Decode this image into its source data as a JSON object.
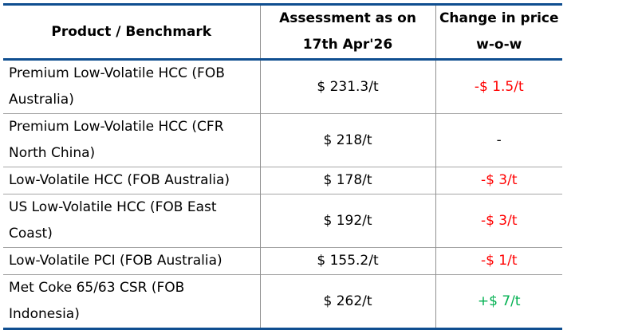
{
  "colors": {
    "table_rule_navy": "#0f4e90",
    "grid_line_gray": "#a6a6a6",
    "negative_change": "#ff0000",
    "positive_change": "#00b050",
    "neutral_text": "#000000"
  },
  "chart_data": {
    "type": "table",
    "title": "",
    "columns": [
      {
        "id": "product",
        "label": "Product / Benchmark"
      },
      {
        "id": "assessment",
        "label": "Assessment as on\n17th Apr'26"
      },
      {
        "id": "change",
        "label": "Change in price\nw-o-w"
      }
    ],
    "rows": [
      {
        "product": "Premium Low-Volatile HCC (FOB\nAustralia)",
        "assessment": "$ 231.3/t",
        "assessment_value": 231.3,
        "change": "-$ 1.5/t",
        "change_value": -1.5,
        "change_color": "#ff0000"
      },
      {
        "product": "Premium Low-Volatile HCC (CFR\nNorth China)",
        "assessment": "$ 218/t",
        "assessment_value": 218,
        "change": "-",
        "change_value": 0,
        "change_color": "#000000"
      },
      {
        "product": "Low-Volatile HCC (FOB Australia)",
        "assessment": "$ 178/t",
        "assessment_value": 178,
        "change": "-$ 3/t",
        "change_value": -3,
        "change_color": "#ff0000"
      },
      {
        "product": "US Low-Volatile HCC (FOB East\nCoast)",
        "assessment": "$ 192/t",
        "assessment_value": 192,
        "change": "-$ 3/t",
        "change_value": -3,
        "change_color": "#ff0000"
      },
      {
        "product": "Low-Volatile PCI (FOB Australia)",
        "assessment": "$ 155.2/t",
        "assessment_value": 155.2,
        "change": "-$ 1/t",
        "change_value": -1,
        "change_color": "#ff0000"
      },
      {
        "product": "Met Coke 65/63 CSR (FOB\nIndonesia)",
        "assessment": "$ 262/t",
        "assessment_value": 262,
        "change": "+$ 7/t",
        "change_value": 7,
        "change_color": "#00b050"
      }
    ]
  }
}
